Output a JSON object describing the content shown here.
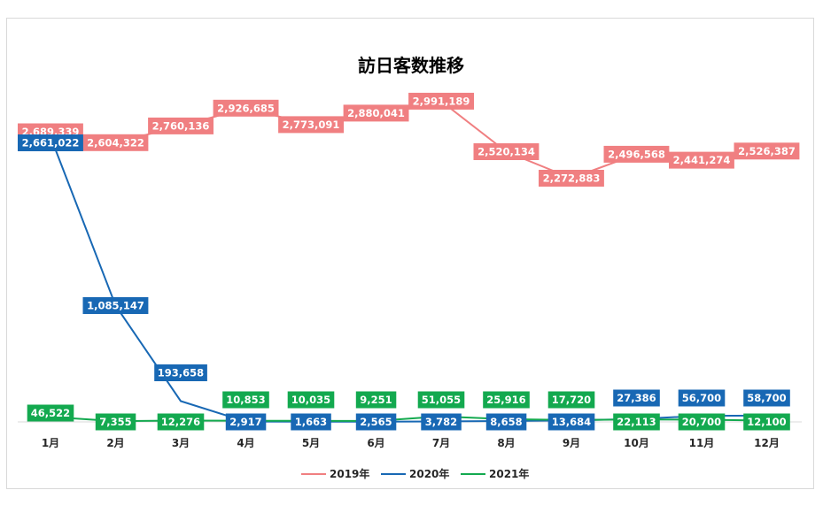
{
  "chart_data": {
    "type": "line",
    "title": "訪日客数推移",
    "xlabel": "",
    "ylabel": "",
    "categories": [
      "1月",
      "2月",
      "3月",
      "4月",
      "5月",
      "6月",
      "7月",
      "8月",
      "9月",
      "10月",
      "11月",
      "12月"
    ],
    "ylim": [
      0,
      3300000
    ],
    "legend_position": "bottom",
    "series": [
      {
        "name": "2019年",
        "color": "#f07f81",
        "values": [
          2689339,
          2604322,
          2760136,
          2926685,
          2773091,
          2880041,
          2991189,
          2520134,
          2272883,
          2496568,
          2441274,
          2526387
        ],
        "labels": [
          "2,689,339",
          "2,604,322",
          "2,760,136",
          "2,926,685",
          "2,773,091",
          "2,880,041",
          "2,991,189",
          "2,520,134",
          "2,272,883",
          "2,496,568",
          "2,441,274",
          "2,526,387"
        ]
      },
      {
        "name": "2020年",
        "color": "#1868b4",
        "values": [
          2661022,
          1085147,
          193658,
          2917,
          1663,
          2565,
          3782,
          8658,
          13684,
          27386,
          56700,
          58700
        ],
        "labels": [
          "2,661,022",
          "1,085,147",
          "193,658",
          "2,917",
          "1,663",
          "2,565",
          "3,782",
          "8,658",
          "13,684",
          "27,386",
          "56,700",
          "58,700"
        ]
      },
      {
        "name": "2021年",
        "color": "#13a94f",
        "values": [
          46522,
          7355,
          12276,
          10853,
          10035,
          9251,
          51055,
          25916,
          17720,
          22113,
          20700,
          12100
        ],
        "labels": [
          "46,522",
          "7,355",
          "12,276",
          "10,853",
          "10,035",
          "9,251",
          "51,055",
          "25,916",
          "17,720",
          "22,113",
          "20,700",
          "12,100"
        ]
      }
    ]
  }
}
